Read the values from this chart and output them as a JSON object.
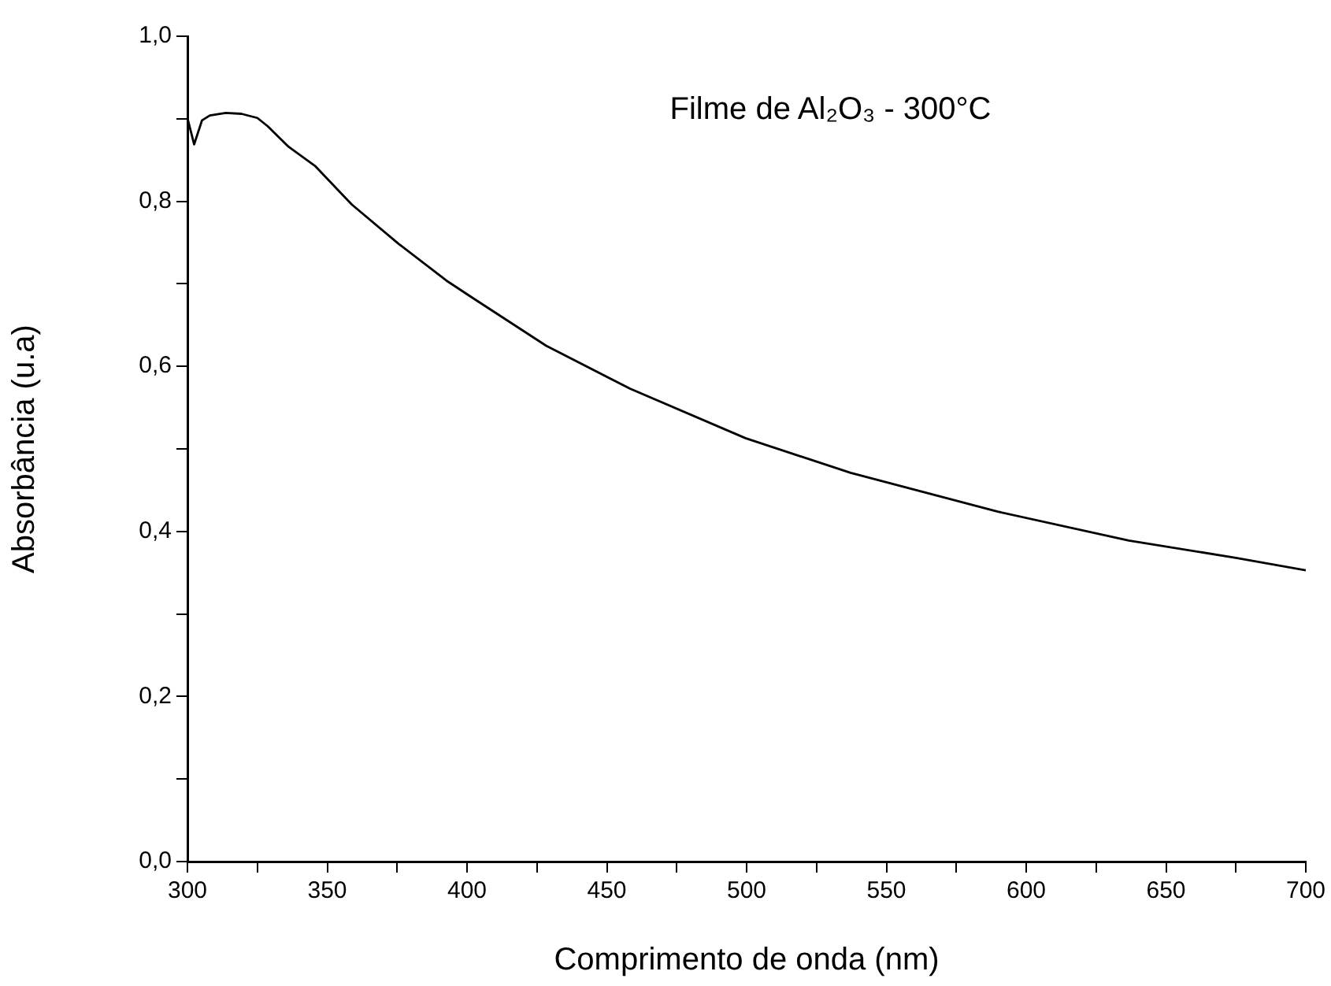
{
  "chart_data": {
    "type": "line",
    "title": "Filme de Al₂O₃ - 300°C",
    "xlabel": "Comprimento de onda (nm)",
    "ylabel": "Absorbância (u.a)",
    "x": [
      300,
      302.4,
      305.2,
      308,
      313.7,
      319.3,
      325,
      328.7,
      336.2,
      345.6,
      358.8,
      375.7,
      392.6,
      402,
      428.3,
      458.3,
      499.6,
      537.2,
      589.8,
      636.7,
      675,
      700
    ],
    "series": [
      {
        "color": "#000000",
        "values": [
          0.901,
          0.869,
          0.898,
          0.904,
          0.907,
          0.906,
          0.901,
          0.891,
          0.866,
          0.843,
          0.796,
          0.748,
          0.704,
          0.683,
          0.625,
          0.573,
          0.513,
          0.471,
          0.424,
          0.389,
          0.368,
          0.353
        ]
      }
    ],
    "xlim": [
      300,
      700
    ],
    "xticks": [
      300,
      {
        "value": 325,
        "label": null
      },
      350,
      {
        "value": 375,
        "label": null
      },
      400,
      {
        "value": 425,
        "label": null
      },
      450,
      {
        "value": 475,
        "label": null
      },
      500,
      {
        "value": 525,
        "label": null
      },
      550,
      {
        "value": 575,
        "label": null
      },
      600,
      {
        "value": 625,
        "label": null
      },
      650,
      {
        "value": 675,
        "label": null
      },
      700
    ],
    "ylim": [
      0,
      1
    ],
    "yticks": [
      {
        "value": 0,
        "label": "0,0"
      },
      {
        "value": 0.1,
        "label": null
      },
      {
        "value": 0.2,
        "label": "0,2"
      },
      {
        "value": 0.3,
        "label": null
      },
      {
        "value": 0.4,
        "label": "0,4"
      },
      {
        "value": 0.5,
        "label": null
      },
      {
        "value": 0.6,
        "label": "0,6"
      },
      {
        "value": 0.7,
        "label": null
      },
      {
        "value": 0.8,
        "label": "0,8"
      },
      {
        "value": 0.9,
        "label": null
      },
      {
        "value": 1,
        "label": "1,0"
      }
    ],
    "grid": false,
    "legend": false,
    "marker": "none",
    "line_style": "solid"
  }
}
